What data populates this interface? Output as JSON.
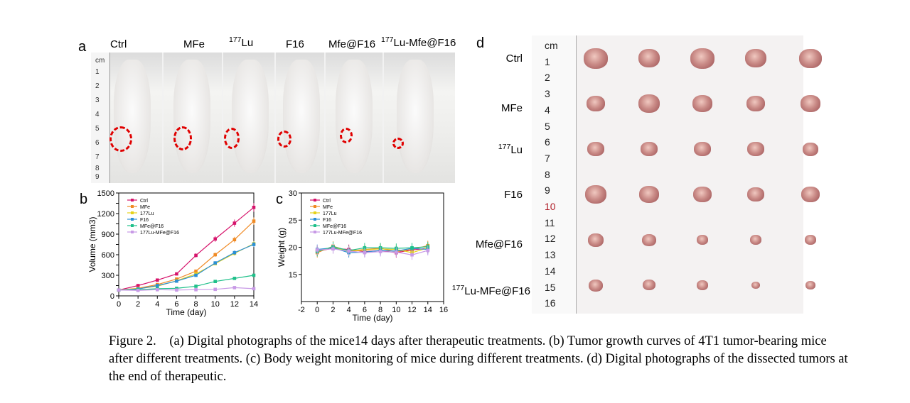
{
  "panels": {
    "a": "a",
    "b": "b",
    "c": "c",
    "d": "d"
  },
  "mouse_labels": [
    {
      "pre": "",
      "sup": "",
      "main": "Ctrl"
    },
    {
      "pre": "",
      "sup": "",
      "main": "MFe"
    },
    {
      "pre": "",
      "sup": "177",
      "main": "Lu"
    },
    {
      "pre": "",
      "sup": "",
      "main": "F16"
    },
    {
      "pre": "",
      "sup": "",
      "main": "Mfe@F16"
    },
    {
      "pre": "",
      "sup": "177",
      "main": "Lu-Mfe@F16"
    }
  ],
  "ruler_numbers": [
    "cm",
    "1",
    "2",
    "3",
    "4",
    "5",
    "6",
    "7",
    "8",
    "9"
  ],
  "board_ruler_numbers": [
    "cm",
    "1",
    "2",
    "3",
    "4",
    "5",
    "6",
    "7",
    "8",
    "9",
    "10",
    "11",
    "12",
    "13",
    "14",
    "15",
    "16"
  ],
  "tumor_rows": [
    {
      "sup": "",
      "main": "Ctrl"
    },
    {
      "sup": "",
      "main": "MFe"
    },
    {
      "sup": "177",
      "main": "Lu"
    },
    {
      "sup": "",
      "main": "F16"
    },
    {
      "sup": "",
      "main": "Mfe@F16"
    },
    {
      "sup": "177",
      "main": "Lu-MFe@F16"
    }
  ],
  "colors": {
    "tumor_circle": "#e00000",
    "Ctrl": "#d6136b",
    "MFe": "#f08a24",
    "Lu": "#e6d21a",
    "F16": "#2a8fd6",
    "MFe@F16": "#1fc08a",
    "LuMFe@F16": "#c89ae6"
  },
  "chart_data": [
    {
      "type": "line",
      "panel": "b",
      "xlabel": "Time (day)",
      "ylabel": "Volume (mm3)",
      "xlim": [
        0,
        14
      ],
      "ylim": [
        0,
        1500
      ],
      "xticks": [
        0,
        2,
        4,
        6,
        8,
        10,
        12,
        14
      ],
      "yticks": [
        0,
        150,
        300,
        450,
        600,
        750,
        900,
        1050,
        1200,
        1350,
        1500
      ],
      "ytick_labels": [
        "0",
        "",
        "300",
        "",
        "600",
        "",
        "900",
        "",
        "1200",
        "",
        "1500"
      ],
      "x": [
        0,
        2,
        4,
        6,
        8,
        10,
        12,
        14
      ],
      "series": [
        {
          "name": "Ctrl",
          "values": [
            85,
            150,
            230,
            320,
            590,
            830,
            1060,
            1290
          ]
        },
        {
          "name": "MFe",
          "values": [
            85,
            110,
            165,
            245,
            360,
            600,
            820,
            1090
          ]
        },
        {
          "name": "177Lu",
          "values": [
            85,
            105,
            140,
            220,
            320,
            470,
            620,
            760
          ]
        },
        {
          "name": "F16",
          "values": [
            85,
            100,
            150,
            215,
            300,
            480,
            630,
            750
          ]
        },
        {
          "name": "MFe@F16",
          "values": [
            85,
            90,
            105,
            110,
            140,
            210,
            255,
            300
          ]
        },
        {
          "name": "177Lu-MFe@F16",
          "values": [
            85,
            80,
            90,
            85,
            90,
            95,
            120,
            105
          ]
        }
      ],
      "legend_pos": "top-left"
    },
    {
      "type": "line",
      "panel": "c",
      "xlabel": "Time (day)",
      "ylabel": "Weight (g)",
      "xlim": [
        -2,
        16
      ],
      "ylim": [
        10,
        30
      ],
      "xticks": [
        -2,
        0,
        2,
        4,
        6,
        8,
        10,
        12,
        14,
        16
      ],
      "yticks": [
        15,
        20,
        25,
        30
      ],
      "x": [
        0,
        2,
        4,
        6,
        8,
        10,
        12,
        14
      ],
      "series": [
        {
          "name": "Ctrl",
          "values": [
            19.3,
            19.8,
            19.6,
            19.2,
            19.4,
            19.0,
            19.5,
            19.8
          ]
        },
        {
          "name": "MFe",
          "values": [
            19.0,
            20.2,
            19.3,
            19.6,
            19.8,
            19.2,
            19.6,
            20.3
          ]
        },
        {
          "name": "177Lu",
          "values": [
            19.4,
            20.0,
            19.2,
            19.5,
            19.7,
            19.6,
            19.0,
            19.9
          ]
        },
        {
          "name": "F16",
          "values": [
            19.6,
            19.9,
            19.0,
            19.1,
            19.4,
            19.3,
            19.8,
            19.6
          ]
        },
        {
          "name": "MFe@F16",
          "values": [
            19.2,
            20.1,
            19.4,
            19.9,
            19.9,
            19.8,
            19.9,
            20.1
          ]
        },
        {
          "name": "177Lu-MFe@F16",
          "values": [
            19.5,
            19.7,
            19.3,
            19.0,
            19.2,
            19.1,
            18.6,
            19.4
          ]
        }
      ],
      "legend_pos": "top-left"
    }
  ],
  "caption": {
    "fig": "Figure 2.",
    "text": "(a) Digital photographs of the mice14 days after therapeutic treatments. (b) Tumor growth curves of 4T1 tumor-bearing mice after different treatments. (c) Body weight monitoring of mice during different treatments. (d) Digital photographs of the dissected tumors at the end of therapeutic."
  }
}
